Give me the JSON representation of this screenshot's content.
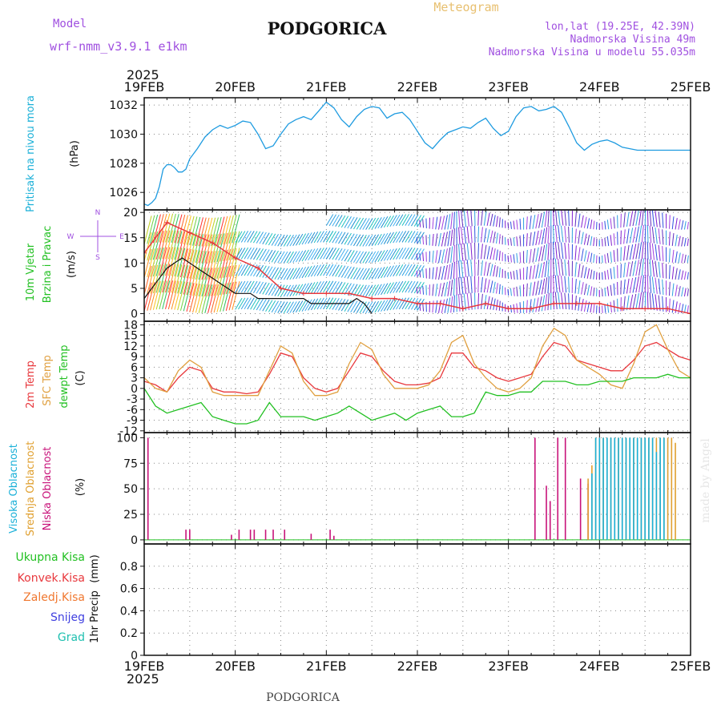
{
  "header": {
    "model_label": "Model",
    "model_name": "wrf-nmm_v3.9.1 e1km",
    "city": "PODGORICA",
    "meteogram": "Meteogram",
    "lonlat": "lon,lat (19.25E, 42.39N)",
    "elevation": "Nadmorska Visina 49m",
    "elevation_model": "Nadmorska Visina u modelu 55.035m"
  },
  "footer": {
    "city": "PODGORICA",
    "credit": "made by Angel"
  },
  "colors": {
    "pressure": "#1e9be0",
    "temp2m": "#e8383d",
    "sfc": "#e0a040",
    "dewpt": "#22c022",
    "high_cloud": "#1ab0d8",
    "mid_cloud": "#e0a030",
    "low_cloud": "#c8137a",
    "total_precip": "#22c022",
    "conv": "#e8383d",
    "frozen": "#f07830",
    "snow": "#4040e0",
    "grad": "#20c0b0",
    "wind_label": "#22c022",
    "violet": "#a050e0"
  },
  "chart_data": {
    "type": "meteogram",
    "time_axis": {
      "start": "2025-02-19T00",
      "end": "2025-02-25T00",
      "year_label": "2025",
      "tick_labels": [
        "19FEB",
        "20FEB",
        "21FEB",
        "22FEB",
        "23FEB",
        "24FEB",
        "25FEB"
      ]
    },
    "panels": [
      {
        "id": "pressure",
        "type": "line",
        "ylabels": [
          "Pritisak na nivou mora"
        ],
        "unit": "(hPa)",
        "ylim": [
          1024.8,
          1032.5
        ],
        "yticks": [
          1026,
          1028,
          1030,
          1032
        ],
        "grid": true,
        "series": [
          {
            "color_key": "pressure",
            "x": [
              0,
              1,
              2,
              3,
              4,
              5,
              6,
              7,
              8,
              9,
              10,
              11,
              12,
              14,
              16,
              18,
              20,
              22,
              24,
              26,
              28,
              30,
              32,
              34,
              36,
              38,
              40,
              42,
              44,
              46,
              48,
              50,
              52,
              54,
              56,
              58,
              60,
              62,
              64,
              66,
              68,
              70,
              72,
              74,
              76,
              78,
              80,
              82,
              84,
              86,
              88,
              90,
              92,
              94,
              96,
              98,
              100,
              102,
              104,
              106,
              108,
              110,
              112,
              114,
              116,
              118,
              120,
              122,
              124,
              126,
              128,
              130,
              132,
              134,
              136,
              138,
              140,
              142,
              144
            ],
            "y": [
              1025.2,
              1025.1,
              1025.3,
              1025.6,
              1026.4,
              1027.6,
              1027.9,
              1027.9,
              1027.7,
              1027.4,
              1027.4,
              1027.6,
              1028.3,
              1029.0,
              1029.8,
              1030.3,
              1030.6,
              1030.4,
              1030.6,
              1030.9,
              1030.8,
              1030.0,
              1029.0,
              1029.2,
              1030.0,
              1030.7,
              1031.0,
              1031.2,
              1031.0,
              1031.6,
              1032.2,
              1031.8,
              1031.0,
              1030.5,
              1031.2,
              1031.7,
              1031.9,
              1031.8,
              1031.1,
              1031.4,
              1031.5,
              1031.0,
              1030.2,
              1029.4,
              1029.0,
              1029.6,
              1030.1,
              1030.3,
              1030.5,
              1030.4,
              1030.8,
              1031.1,
              1030.4,
              1029.9,
              1030.2,
              1031.2,
              1031.8,
              1031.9,
              1031.6,
              1031.7,
              1031.9,
              1031.5,
              1030.5,
              1029.4,
              1028.9,
              1029.3,
              1029.5,
              1029.6,
              1029.4,
              1029.1,
              1029.0,
              1028.9,
              1028.9,
              1028.9,
              1028.9,
              1028.9,
              1028.9,
              1028.9,
              1028.9
            ]
          }
        ]
      },
      {
        "id": "wind",
        "type": "line+barbs",
        "ylabels": [
          "10m Vjetar",
          "Brzina i Pravac"
        ],
        "unit": "(m/s)",
        "ylim": [
          -1.5,
          20.5
        ],
        "yticks": [
          0,
          5,
          10,
          15,
          20
        ],
        "grid": true,
        "compass": [
          "N",
          "E",
          "W",
          "S"
        ],
        "speed": {
          "x": [
            0,
            2,
            4,
            6,
            8,
            10,
            12,
            14,
            16,
            18,
            20,
            22,
            24,
            26,
            28,
            30,
            32,
            34,
            36,
            38,
            40,
            42,
            44,
            46,
            48,
            50,
            52,
            54,
            56,
            58,
            60
          ],
          "y": [
            3,
            5,
            7,
            9,
            10,
            11,
            10,
            9,
            8,
            7,
            6,
            5,
            4,
            4,
            4,
            3,
            3,
            3,
            3,
            3,
            3,
            3,
            2,
            2,
            2,
            2,
            2,
            2,
            3,
            2,
            0
          ]
        },
        "gust": {
          "x": [
            0,
            6,
            12,
            18,
            24,
            30,
            36,
            42,
            48,
            54,
            60,
            66,
            72,
            78,
            84,
            90,
            96,
            102,
            108,
            114,
            120,
            126,
            132,
            138,
            144
          ],
          "y": [
            12,
            18,
            16,
            14,
            11,
            9,
            5,
            4,
            4,
            4,
            3,
            3,
            2,
            2,
            1,
            2,
            1,
            1,
            2,
            2,
            2,
            1,
            1,
            1,
            0
          ]
        },
        "barbs": [
          {
            "hour": 0,
            "rows": 5,
            "hue": "warm"
          },
          {
            "hour": 24,
            "rows": 5,
            "hue": "cyan"
          },
          {
            "hour": 48,
            "rows": 6,
            "hue": "cyan"
          },
          {
            "hour": 72,
            "rows": 6,
            "hue": "violet"
          },
          {
            "hour": 96,
            "rows": 6,
            "hue": "violet"
          },
          {
            "hour": 120,
            "rows": 6,
            "hue": "violet"
          }
        ]
      },
      {
        "id": "temperature",
        "type": "line",
        "ylabels": [
          "2m Temp",
          "SFC Temp",
          "dewpt Temp"
        ],
        "unit": "(C)",
        "ylim": [
          -12.5,
          19
        ],
        "yticks": [
          -12,
          -9,
          -6,
          -3,
          0,
          3,
          6,
          9,
          12,
          15,
          18
        ],
        "grid": true,
        "series": [
          {
            "name": "2m Temp",
            "color_key": "temp2m",
            "x": [
              0,
              3,
              6,
              9,
              12,
              15,
              18,
              21,
              24,
              27,
              30,
              33,
              36,
              39,
              42,
              45,
              48,
              51,
              54,
              57,
              60,
              63,
              66,
              69,
              72,
              75,
              78,
              81,
              84,
              87,
              90,
              93,
              96,
              99,
              102,
              105,
              108,
              111,
              114,
              117,
              120,
              123,
              126,
              129,
              132,
              135,
              138,
              141,
              144
            ],
            "y": [
              2,
              1,
              -1,
              3,
              6,
              5,
              0,
              -1,
              -1,
              -1.5,
              -1,
              4,
              10,
              9,
              3,
              0,
              -1,
              0,
              5,
              10,
              9,
              5,
              2,
              1,
              1,
              1.5,
              3,
              10,
              10,
              6,
              5,
              3,
              2,
              3,
              4,
              9,
              13,
              12,
              8,
              7,
              6,
              5,
              5,
              8,
              12,
              13,
              11,
              9,
              8
            ]
          },
          {
            "name": "SFC Temp",
            "color_key": "sfc",
            "x": [
              0,
              3,
              6,
              9,
              12,
              15,
              18,
              21,
              24,
              27,
              30,
              33,
              36,
              39,
              42,
              45,
              48,
              51,
              54,
              57,
              60,
              63,
              66,
              69,
              72,
              75,
              78,
              81,
              84,
              87,
              90,
              93,
              96,
              99,
              102,
              105,
              108,
              111,
              114,
              117,
              120,
              123,
              126,
              129,
              132,
              135,
              138,
              141,
              144
            ],
            "y": [
              3,
              0,
              -1,
              5,
              8,
              6,
              -1,
              -2,
              -2,
              -2,
              -2,
              5,
              12,
              10,
              2,
              -2,
              -2,
              -1,
              7,
              13,
              11,
              4,
              0,
              0,
              0,
              1,
              5,
              13,
              15,
              7,
              3,
              0,
              -1,
              0,
              3,
              12,
              17,
              15,
              8,
              6,
              4,
              1,
              0,
              7,
              16,
              18,
              11,
              5,
              3
            ]
          },
          {
            "name": "dewpt Temp",
            "color_key": "dewpt",
            "x": [
              0,
              3,
              6,
              9,
              12,
              15,
              18,
              21,
              24,
              27,
              30,
              33,
              36,
              39,
              42,
              45,
              48,
              51,
              54,
              57,
              60,
              63,
              66,
              69,
              72,
              75,
              78,
              81,
              84,
              87,
              90,
              93,
              96,
              99,
              102,
              105,
              108,
              111,
              114,
              117,
              120,
              123,
              126,
              129,
              132,
              135,
              138,
              141,
              144
            ],
            "y": [
              0,
              -5,
              -7,
              -6,
              -5,
              -4,
              -8,
              -9,
              -10,
              -10,
              -9,
              -4,
              -8,
              -8,
              -8,
              -9,
              -8,
              -7,
              -5,
              -7,
              -9,
              -8,
              -7,
              -9,
              -7,
              -6,
              -5,
              -8,
              -8,
              -7,
              -1,
              -2,
              -2,
              -1,
              -1,
              2,
              2,
              2,
              1,
              1,
              2,
              2,
              2,
              3,
              3,
              3,
              4,
              3,
              3
            ]
          }
        ]
      },
      {
        "id": "cloud",
        "type": "bar",
        "ylabels": [
          "Visoka Oblacnost",
          "Srednja Oblacnost",
          "Niska Oblacnost"
        ],
        "unit": "(%)",
        "ylim": [
          -4,
          105
        ],
        "yticks": [
          0,
          25,
          50,
          75,
          100
        ],
        "grid": true,
        "series": [
          {
            "name": "Niska Oblacnost",
            "color_key": "low_cloud",
            "x": [
              1,
              11,
              12,
              23,
              25,
              28,
              29,
              32,
              34,
              37,
              44,
              49,
              50,
              103,
              106,
              107,
              109,
              111,
              115,
              117
            ],
            "y": [
              100,
              10,
              10,
              5,
              10,
              10,
              10,
              10,
              10,
              10,
              6,
              10,
              4,
              100,
              53,
              38,
              100,
              100,
              60,
              55
            ]
          },
          {
            "name": "Srednja Oblacnost",
            "color_key": "mid_cloud",
            "x": [
              117,
              118,
              119,
              120,
              121,
              122,
              123,
              124,
              125,
              126,
              127,
              128,
              129,
              130,
              131,
              132,
              133,
              134,
              135,
              136,
              137,
              138,
              139,
              140
            ],
            "y": [
              60,
              73,
              100,
              100,
              100,
              100,
              100,
              100,
              100,
              100,
              100,
              100,
              100,
              100,
              100,
              100,
              100,
              100,
              100,
              100,
              100,
              100,
              100,
              95
            ]
          },
          {
            "name": "Visoka Oblacnost",
            "color_key": "high_cloud",
            "x": [
              118,
              119,
              120,
              121,
              122,
              123,
              124,
              125,
              126,
              127,
              128,
              129,
              130,
              131,
              132,
              133,
              134,
              135,
              136,
              137
            ],
            "y": [
              65,
              100,
              100,
              100,
              100,
              100,
              100,
              100,
              100,
              100,
              100,
              100,
              100,
              100,
              100,
              100,
              100,
              86,
              100,
              100
            ]
          }
        ]
      },
      {
        "id": "precip",
        "type": "bar",
        "ylabels": [
          "1hr Precip"
        ],
        "unit": "(mm)",
        "ylim": [
          0,
          1
        ],
        "yticks": [
          0,
          0.2,
          0.4,
          0.6,
          0.8
        ],
        "grid": true,
        "legend": [
          "Ukupna Kisa",
          "Konvek.Kisa",
          "Zaledj.Kisa",
          "Snijeg",
          "Grad"
        ],
        "series": []
      }
    ]
  }
}
